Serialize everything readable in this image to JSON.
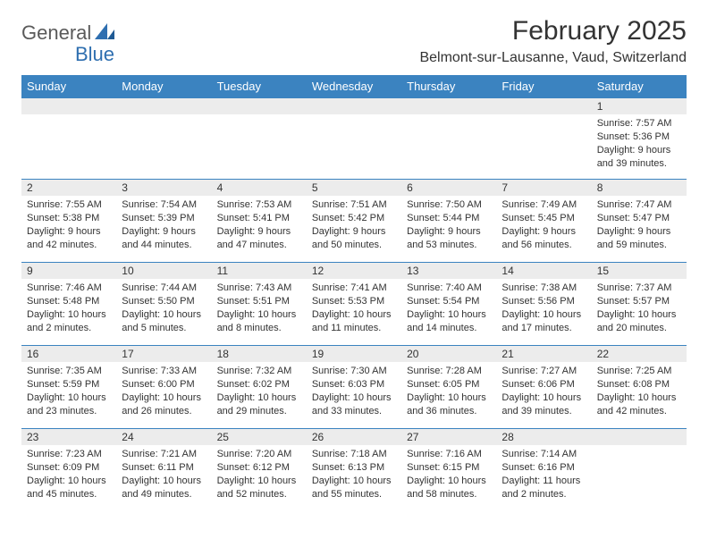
{
  "logo": {
    "text1": "General",
    "text2": "Blue"
  },
  "title": "February 2025",
  "location": "Belmont-sur-Lausanne, Vaud, Switzerland",
  "colors": {
    "header_bg": "#3b83c0",
    "header_text": "#ffffff",
    "daynum_bg": "#ececec",
    "border": "#3b83c0",
    "text": "#333333",
    "logo_gray": "#5a5a5a",
    "logo_blue": "#2f6fb0"
  },
  "day_headers": [
    "Sunday",
    "Monday",
    "Tuesday",
    "Wednesday",
    "Thursday",
    "Friday",
    "Saturday"
  ],
  "weeks": [
    [
      {
        "n": "",
        "sunrise": "",
        "sunset": "",
        "daylight": ""
      },
      {
        "n": "",
        "sunrise": "",
        "sunset": "",
        "daylight": ""
      },
      {
        "n": "",
        "sunrise": "",
        "sunset": "",
        "daylight": ""
      },
      {
        "n": "",
        "sunrise": "",
        "sunset": "",
        "daylight": ""
      },
      {
        "n": "",
        "sunrise": "",
        "sunset": "",
        "daylight": ""
      },
      {
        "n": "",
        "sunrise": "",
        "sunset": "",
        "daylight": ""
      },
      {
        "n": "1",
        "sunrise": "Sunrise: 7:57 AM",
        "sunset": "Sunset: 5:36 PM",
        "daylight": "Daylight: 9 hours and 39 minutes."
      }
    ],
    [
      {
        "n": "2",
        "sunrise": "Sunrise: 7:55 AM",
        "sunset": "Sunset: 5:38 PM",
        "daylight": "Daylight: 9 hours and 42 minutes."
      },
      {
        "n": "3",
        "sunrise": "Sunrise: 7:54 AM",
        "sunset": "Sunset: 5:39 PM",
        "daylight": "Daylight: 9 hours and 44 minutes."
      },
      {
        "n": "4",
        "sunrise": "Sunrise: 7:53 AM",
        "sunset": "Sunset: 5:41 PM",
        "daylight": "Daylight: 9 hours and 47 minutes."
      },
      {
        "n": "5",
        "sunrise": "Sunrise: 7:51 AM",
        "sunset": "Sunset: 5:42 PM",
        "daylight": "Daylight: 9 hours and 50 minutes."
      },
      {
        "n": "6",
        "sunrise": "Sunrise: 7:50 AM",
        "sunset": "Sunset: 5:44 PM",
        "daylight": "Daylight: 9 hours and 53 minutes."
      },
      {
        "n": "7",
        "sunrise": "Sunrise: 7:49 AM",
        "sunset": "Sunset: 5:45 PM",
        "daylight": "Daylight: 9 hours and 56 minutes."
      },
      {
        "n": "8",
        "sunrise": "Sunrise: 7:47 AM",
        "sunset": "Sunset: 5:47 PM",
        "daylight": "Daylight: 9 hours and 59 minutes."
      }
    ],
    [
      {
        "n": "9",
        "sunrise": "Sunrise: 7:46 AM",
        "sunset": "Sunset: 5:48 PM",
        "daylight": "Daylight: 10 hours and 2 minutes."
      },
      {
        "n": "10",
        "sunrise": "Sunrise: 7:44 AM",
        "sunset": "Sunset: 5:50 PM",
        "daylight": "Daylight: 10 hours and 5 minutes."
      },
      {
        "n": "11",
        "sunrise": "Sunrise: 7:43 AM",
        "sunset": "Sunset: 5:51 PM",
        "daylight": "Daylight: 10 hours and 8 minutes."
      },
      {
        "n": "12",
        "sunrise": "Sunrise: 7:41 AM",
        "sunset": "Sunset: 5:53 PM",
        "daylight": "Daylight: 10 hours and 11 minutes."
      },
      {
        "n": "13",
        "sunrise": "Sunrise: 7:40 AM",
        "sunset": "Sunset: 5:54 PM",
        "daylight": "Daylight: 10 hours and 14 minutes."
      },
      {
        "n": "14",
        "sunrise": "Sunrise: 7:38 AM",
        "sunset": "Sunset: 5:56 PM",
        "daylight": "Daylight: 10 hours and 17 minutes."
      },
      {
        "n": "15",
        "sunrise": "Sunrise: 7:37 AM",
        "sunset": "Sunset: 5:57 PM",
        "daylight": "Daylight: 10 hours and 20 minutes."
      }
    ],
    [
      {
        "n": "16",
        "sunrise": "Sunrise: 7:35 AM",
        "sunset": "Sunset: 5:59 PM",
        "daylight": "Daylight: 10 hours and 23 minutes."
      },
      {
        "n": "17",
        "sunrise": "Sunrise: 7:33 AM",
        "sunset": "Sunset: 6:00 PM",
        "daylight": "Daylight: 10 hours and 26 minutes."
      },
      {
        "n": "18",
        "sunrise": "Sunrise: 7:32 AM",
        "sunset": "Sunset: 6:02 PM",
        "daylight": "Daylight: 10 hours and 29 minutes."
      },
      {
        "n": "19",
        "sunrise": "Sunrise: 7:30 AM",
        "sunset": "Sunset: 6:03 PM",
        "daylight": "Daylight: 10 hours and 33 minutes."
      },
      {
        "n": "20",
        "sunrise": "Sunrise: 7:28 AM",
        "sunset": "Sunset: 6:05 PM",
        "daylight": "Daylight: 10 hours and 36 minutes."
      },
      {
        "n": "21",
        "sunrise": "Sunrise: 7:27 AM",
        "sunset": "Sunset: 6:06 PM",
        "daylight": "Daylight: 10 hours and 39 minutes."
      },
      {
        "n": "22",
        "sunrise": "Sunrise: 7:25 AM",
        "sunset": "Sunset: 6:08 PM",
        "daylight": "Daylight: 10 hours and 42 minutes."
      }
    ],
    [
      {
        "n": "23",
        "sunrise": "Sunrise: 7:23 AM",
        "sunset": "Sunset: 6:09 PM",
        "daylight": "Daylight: 10 hours and 45 minutes."
      },
      {
        "n": "24",
        "sunrise": "Sunrise: 7:21 AM",
        "sunset": "Sunset: 6:11 PM",
        "daylight": "Daylight: 10 hours and 49 minutes."
      },
      {
        "n": "25",
        "sunrise": "Sunrise: 7:20 AM",
        "sunset": "Sunset: 6:12 PM",
        "daylight": "Daylight: 10 hours and 52 minutes."
      },
      {
        "n": "26",
        "sunrise": "Sunrise: 7:18 AM",
        "sunset": "Sunset: 6:13 PM",
        "daylight": "Daylight: 10 hours and 55 minutes."
      },
      {
        "n": "27",
        "sunrise": "Sunrise: 7:16 AM",
        "sunset": "Sunset: 6:15 PM",
        "daylight": "Daylight: 10 hours and 58 minutes."
      },
      {
        "n": "28",
        "sunrise": "Sunrise: 7:14 AM",
        "sunset": "Sunset: 6:16 PM",
        "daylight": "Daylight: 11 hours and 2 minutes."
      },
      {
        "n": "",
        "sunrise": "",
        "sunset": "",
        "daylight": ""
      }
    ]
  ]
}
